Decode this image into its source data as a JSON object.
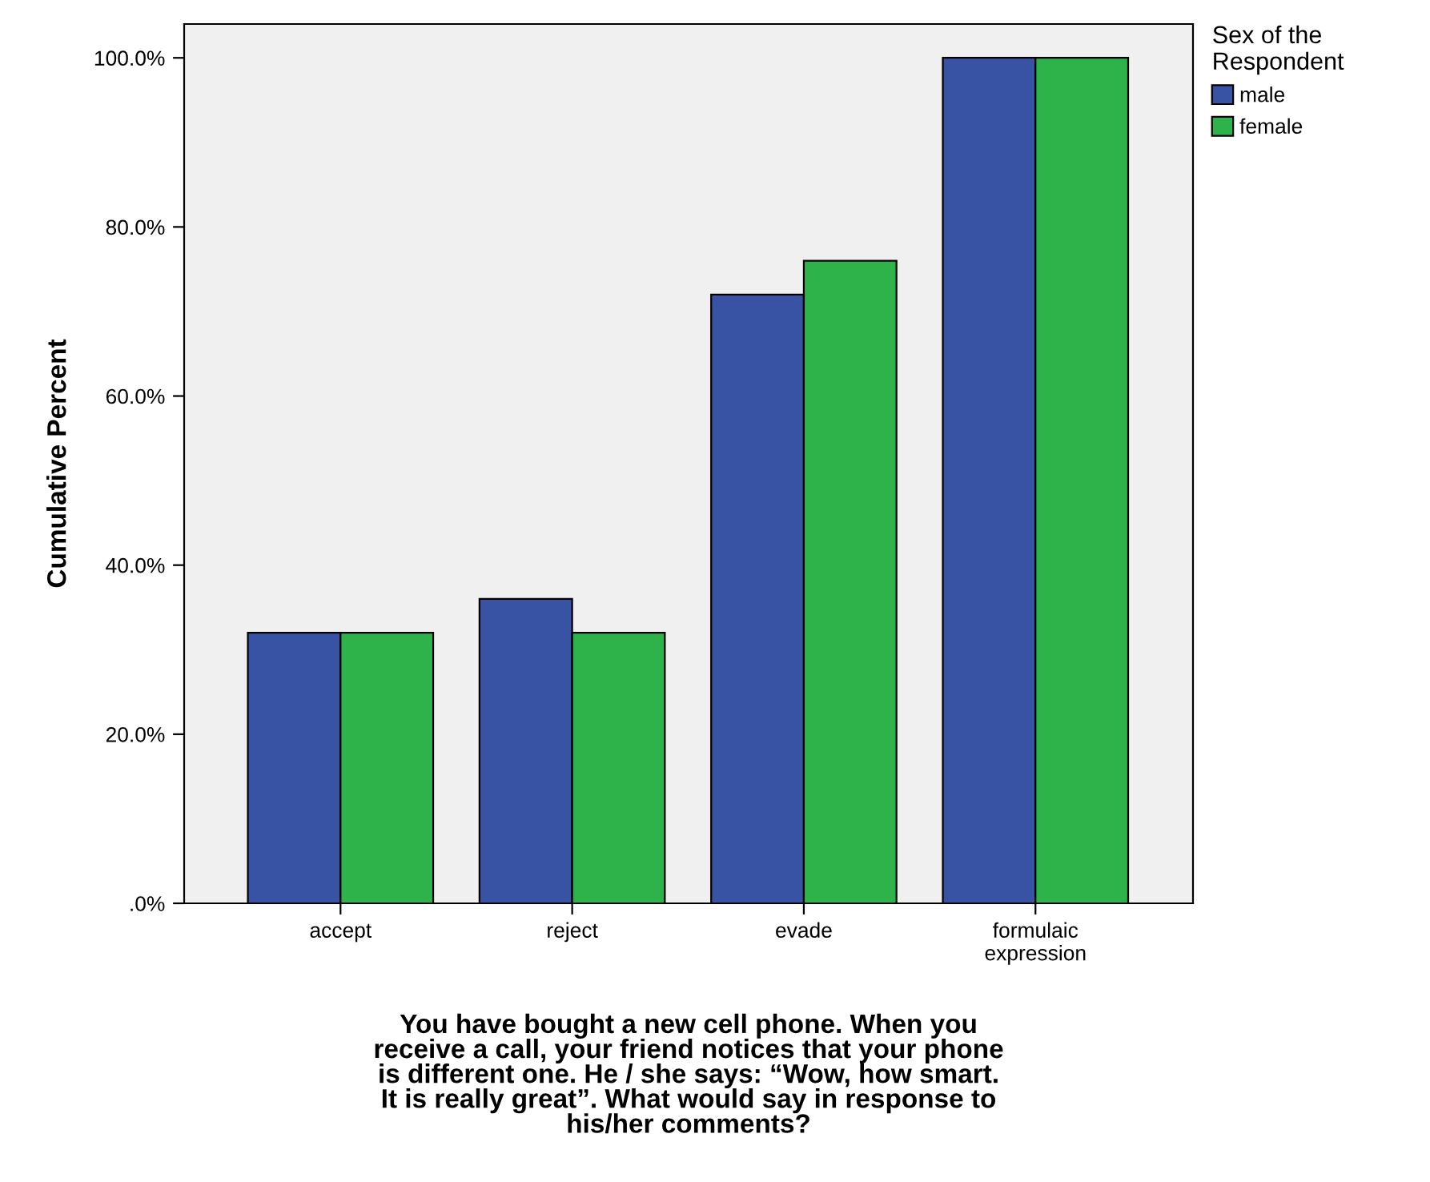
{
  "chart_data": {
    "type": "bar",
    "xlabel": "You have bought a new cell phone. When you\nreceive a call, your friend notices that your phone\nis different one. He / she says: “Wow, how smart.\nIt is really great”. What would say in response to\nhis/her comments?",
    "ylabel": "Cumulative Percent",
    "legend_title": "Sex of the\nRespondent",
    "categories": [
      "accept",
      "reject",
      "evade",
      "formulaic\nexpression"
    ],
    "series": [
      {
        "name": "male",
        "color": "#3953a4",
        "values": [
          32,
          36,
          72,
          100
        ]
      },
      {
        "name": "female",
        "color": "#2db34a",
        "values": [
          32,
          32,
          76,
          100
        ]
      }
    ],
    "ylim": [
      0,
      104
    ],
    "yticks": [
      {
        "value": 0,
        "label": ".0%"
      },
      {
        "value": 20,
        "label": "20.0%"
      },
      {
        "value": 40,
        "label": "40.0%"
      },
      {
        "value": 60,
        "label": "60.0%"
      },
      {
        "value": 80,
        "label": "80.0%"
      },
      {
        "value": 100,
        "label": "100.0%"
      }
    ],
    "grid": false,
    "legend": "right"
  }
}
